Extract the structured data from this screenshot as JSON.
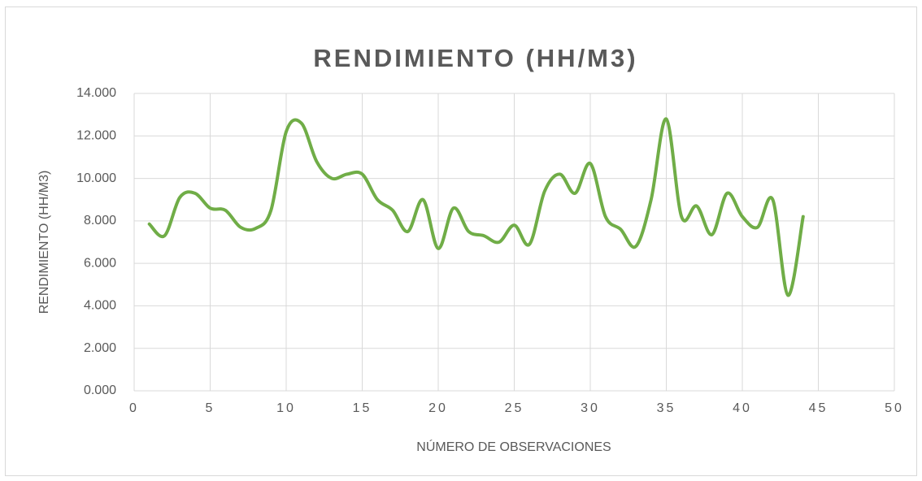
{
  "chart_data": {
    "type": "line",
    "title": "RENDIMIENTO (HH/M3)",
    "x_label": "NÚMERO DE OBSERVACIONES",
    "y_label": "RENDIMIENTO (HH/M3)",
    "x": [
      1,
      2,
      3,
      4,
      5,
      6,
      7,
      8,
      9,
      10,
      11,
      12,
      13,
      14,
      15,
      16,
      17,
      18,
      19,
      20,
      21,
      22,
      23,
      24,
      25,
      26,
      27,
      28,
      29,
      30,
      31,
      32,
      33,
      34,
      35,
      36,
      37,
      38,
      39,
      40,
      41,
      42,
      43,
      44
    ],
    "series": [
      {
        "name": "RENDIMIENTO (HH/M3)",
        "color": "#70ad47",
        "values": [
          7.85,
          7.3,
          9.1,
          9.3,
          8.6,
          8.5,
          7.7,
          7.65,
          8.5,
          12.2,
          12.6,
          10.8,
          10.0,
          10.2,
          10.2,
          9.0,
          8.5,
          7.5,
          9.0,
          6.7,
          8.6,
          7.5,
          7.3,
          7.0,
          7.8,
          6.9,
          9.4,
          10.2,
          9.3,
          10.7,
          8.2,
          7.6,
          6.8,
          9.0,
          12.8,
          8.2,
          8.7,
          7.35,
          9.3,
          8.2,
          7.7,
          9.0,
          4.5,
          8.2
        ]
      }
    ],
    "xlim": [
      0,
      50
    ],
    "xticks": [
      0,
      5,
      10,
      15,
      20,
      25,
      30,
      35,
      40,
      45,
      50
    ],
    "ylim": [
      0,
      14
    ],
    "yticks": [
      {
        "value": 0,
        "label": "0.000"
      },
      {
        "value": 2,
        "label": "2.000"
      },
      {
        "value": 4,
        "label": "4.000"
      },
      {
        "value": 6,
        "label": "6.000"
      },
      {
        "value": 8,
        "label": "8.000"
      },
      {
        "value": 10,
        "label": "10.000"
      },
      {
        "value": 12,
        "label": "12.000"
      },
      {
        "value": 14,
        "label": "14.000"
      }
    ],
    "grid": true
  }
}
